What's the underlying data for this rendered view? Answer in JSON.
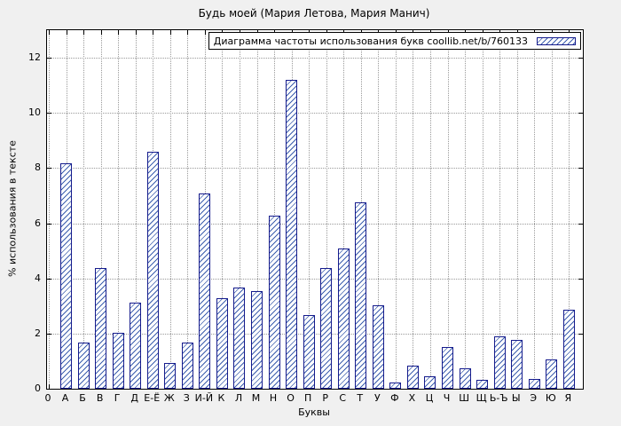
{
  "page": {
    "background": "#f0f0f0"
  },
  "chart_data": {
    "type": "bar",
    "title": "Будь моей (Мария Летова, Мария Манич)",
    "legend_label": "Диаграмма частоты использования букв coollib.net/b/760133",
    "legend_position": "top-right",
    "xlabel": "Буквы",
    "ylabel": "% использования в тексте",
    "x_first_tick": "0",
    "categories": [
      "А",
      "Б",
      "В",
      "Г",
      "Д",
      "Е-Ё",
      "Ж",
      "З",
      "И-Й",
      "К",
      "Л",
      "М",
      "Н",
      "О",
      "П",
      "Р",
      "С",
      "Т",
      "У",
      "Ф",
      "Х",
      "Ц",
      "Ч",
      "Ш",
      "Щ",
      "Ь-Ъ",
      "Ы",
      "Э",
      "Ю",
      "Я"
    ],
    "values": [
      8.17,
      1.67,
      4.37,
      2.03,
      3.12,
      8.59,
      0.93,
      1.67,
      7.08,
      3.28,
      3.67,
      3.54,
      6.27,
      11.2,
      2.67,
      4.37,
      5.08,
      6.76,
      3.02,
      0.23,
      0.84,
      0.45,
      1.51,
      0.74,
      0.32,
      1.9,
      1.77,
      0.35,
      1.06,
      2.86
    ],
    "yticks": [
      0,
      2,
      4,
      6,
      8,
      10,
      12
    ],
    "ylim": [
      0,
      13
    ],
    "grid": true,
    "colors": {
      "bar_border": "#151b8c",
      "bar_hatch": "#3d5fae",
      "grid": "#9a9a9a",
      "plot_bg": "#ffffff",
      "page_bg": "#f0f0f0"
    }
  }
}
